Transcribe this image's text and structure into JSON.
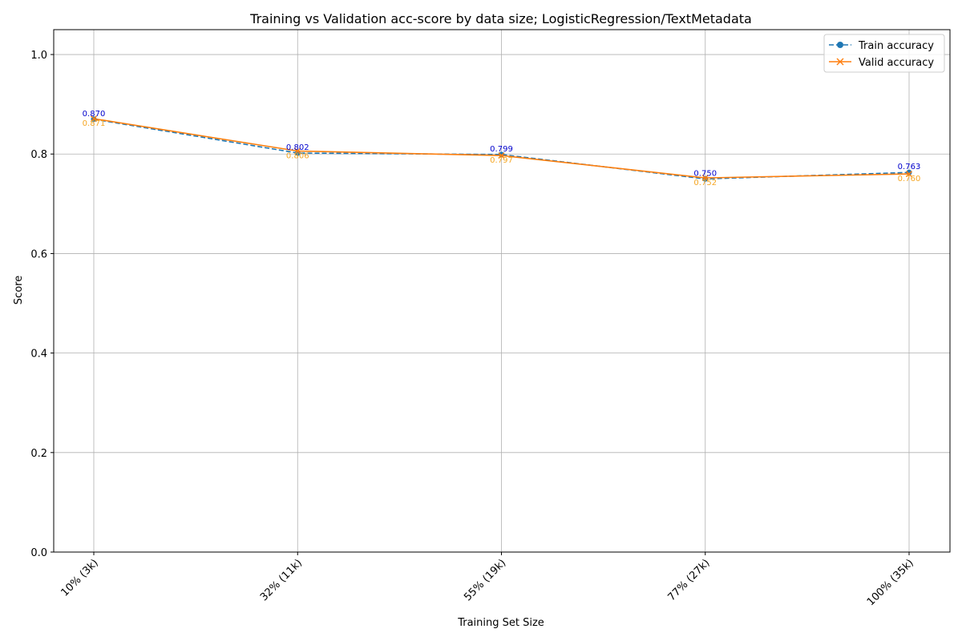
{
  "chart_data": {
    "type": "line",
    "title": "Training vs Validation acc-score by data size; LogisticRegression/TextMetadata",
    "xlabel": "Training Set Size",
    "ylabel": "Score",
    "categories": [
      "10% (3k)",
      "32% (11k)",
      "55% (19k)",
      "77% (27k)",
      "100% (35k)"
    ],
    "ylim": [
      0,
      1.05
    ],
    "yticks": [
      "0.0",
      "0.2",
      "0.4",
      "0.6",
      "0.8",
      "1.0"
    ],
    "grid": true,
    "legend_position": "top-right",
    "series": [
      {
        "name": "Train accuracy",
        "values": [
          0.87,
          0.802,
          0.799,
          0.75,
          0.763
        ],
        "labels": [
          "0.870",
          "0.802",
          "0.799",
          "0.750",
          "0.763"
        ],
        "color": "#1f77b4",
        "label_color": "#0000cc",
        "linestyle": "dashed",
        "marker": "circle"
      },
      {
        "name": "Valid accuracy",
        "values": [
          0.871,
          0.806,
          0.797,
          0.752,
          0.76
        ],
        "labels": [
          "0.871",
          "0.806",
          "0.797",
          "0.752",
          "0.760"
        ],
        "color": "#ff7f0e",
        "label_color": "#f5a623",
        "linestyle": "solid",
        "marker": "x"
      }
    ]
  }
}
